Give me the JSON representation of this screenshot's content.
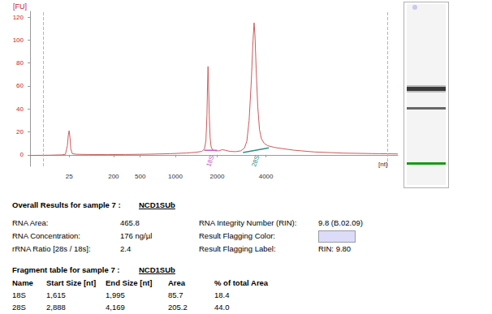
{
  "chart_data": {
    "type": "line",
    "x_label": "[nt]",
    "y_label": "[FU]",
    "color": "#cd5a5a",
    "x": [
      4,
      10,
      18,
      21,
      23,
      24,
      25,
      26,
      27,
      29,
      35,
      60,
      150,
      300,
      600,
      900,
      1200,
      1400,
      1550,
      1620,
      1660,
      1690,
      1705,
      1720,
      1735,
      1755,
      1780,
      1810,
      1860,
      1950,
      2050,
      2150,
      2250,
      2400,
      2600,
      2800,
      2950,
      3050,
      3150,
      3250,
      3330,
      3380,
      3420,
      3480,
      3560,
      3650,
      3750,
      3900,
      4100,
      4500,
      5000,
      6000,
      8000,
      12000,
      20000,
      26000
    ],
    "values": [
      -0.5,
      -0.3,
      0,
      0.5,
      8,
      17,
      21,
      15,
      5,
      1,
      0.5,
      0.3,
      0.2,
      0.3,
      0.6,
      1,
      1.6,
      2.2,
      3,
      5,
      12,
      35,
      60,
      77,
      62,
      35,
      15,
      7,
      4,
      3.5,
      3.5,
      4.5,
      4,
      3,
      2.8,
      3.5,
      6,
      12,
      30,
      65,
      100,
      115,
      105,
      75,
      42,
      22,
      14,
      10,
      8,
      6.5,
      5.5,
      4,
      2.5,
      1.5,
      1,
      0.8
    ],
    "xlim": [
      4,
      26000
    ],
    "xticks": [
      25,
      200,
      500,
      1000,
      2000,
      4000
    ],
    "ylim": [
      -10,
      125
    ],
    "yticks": [
      0,
      20,
      40,
      60,
      80,
      100,
      120
    ],
    "grid": false,
    "window": [
      8,
      22000
    ],
    "peaks": [
      {
        "name": "18S",
        "start": 1615,
        "end": 1995,
        "baseline": [
          4,
          4
        ],
        "color": "#c45ec4"
      },
      {
        "name": "28S",
        "start": 2888,
        "end": 4169,
        "baseline": [
          2,
          6
        ],
        "color": "#2e8b8b"
      }
    ]
  },
  "overall_results": {
    "heading": "Overall Results for sample 7 :",
    "sample": "NCD1SUb",
    "left": [
      {
        "label": "RNA Area:",
        "value": "465.8"
      },
      {
        "label": "RNA Concentration:",
        "value": "176 ng/µl"
      },
      {
        "label": "rRNA Ratio [28s / 18s]:",
        "value": "2.4"
      }
    ],
    "right": [
      {
        "label": "RNA Integrity Number (RIN):",
        "value": "9.8  (B.02.09)"
      },
      {
        "label": "Result Flagging Color:",
        "color": "#dcdcf8"
      },
      {
        "label": "Result Flagging Label:",
        "value": "RIN: 9.80"
      }
    ]
  },
  "fragment_table": {
    "heading": "Fragment table for sample 7 :",
    "sample": "NCD1SUb",
    "header": [
      "Name",
      "Start Size [nt]",
      "End Size [nt]",
      "Area",
      "% of total Area"
    ],
    "rows": [
      [
        "18S",
        "1,615",
        "1,995",
        "85.7",
        "18.4"
      ],
      [
        "28S",
        "2,888",
        "4,169",
        "205.2",
        "44.0"
      ]
    ]
  }
}
